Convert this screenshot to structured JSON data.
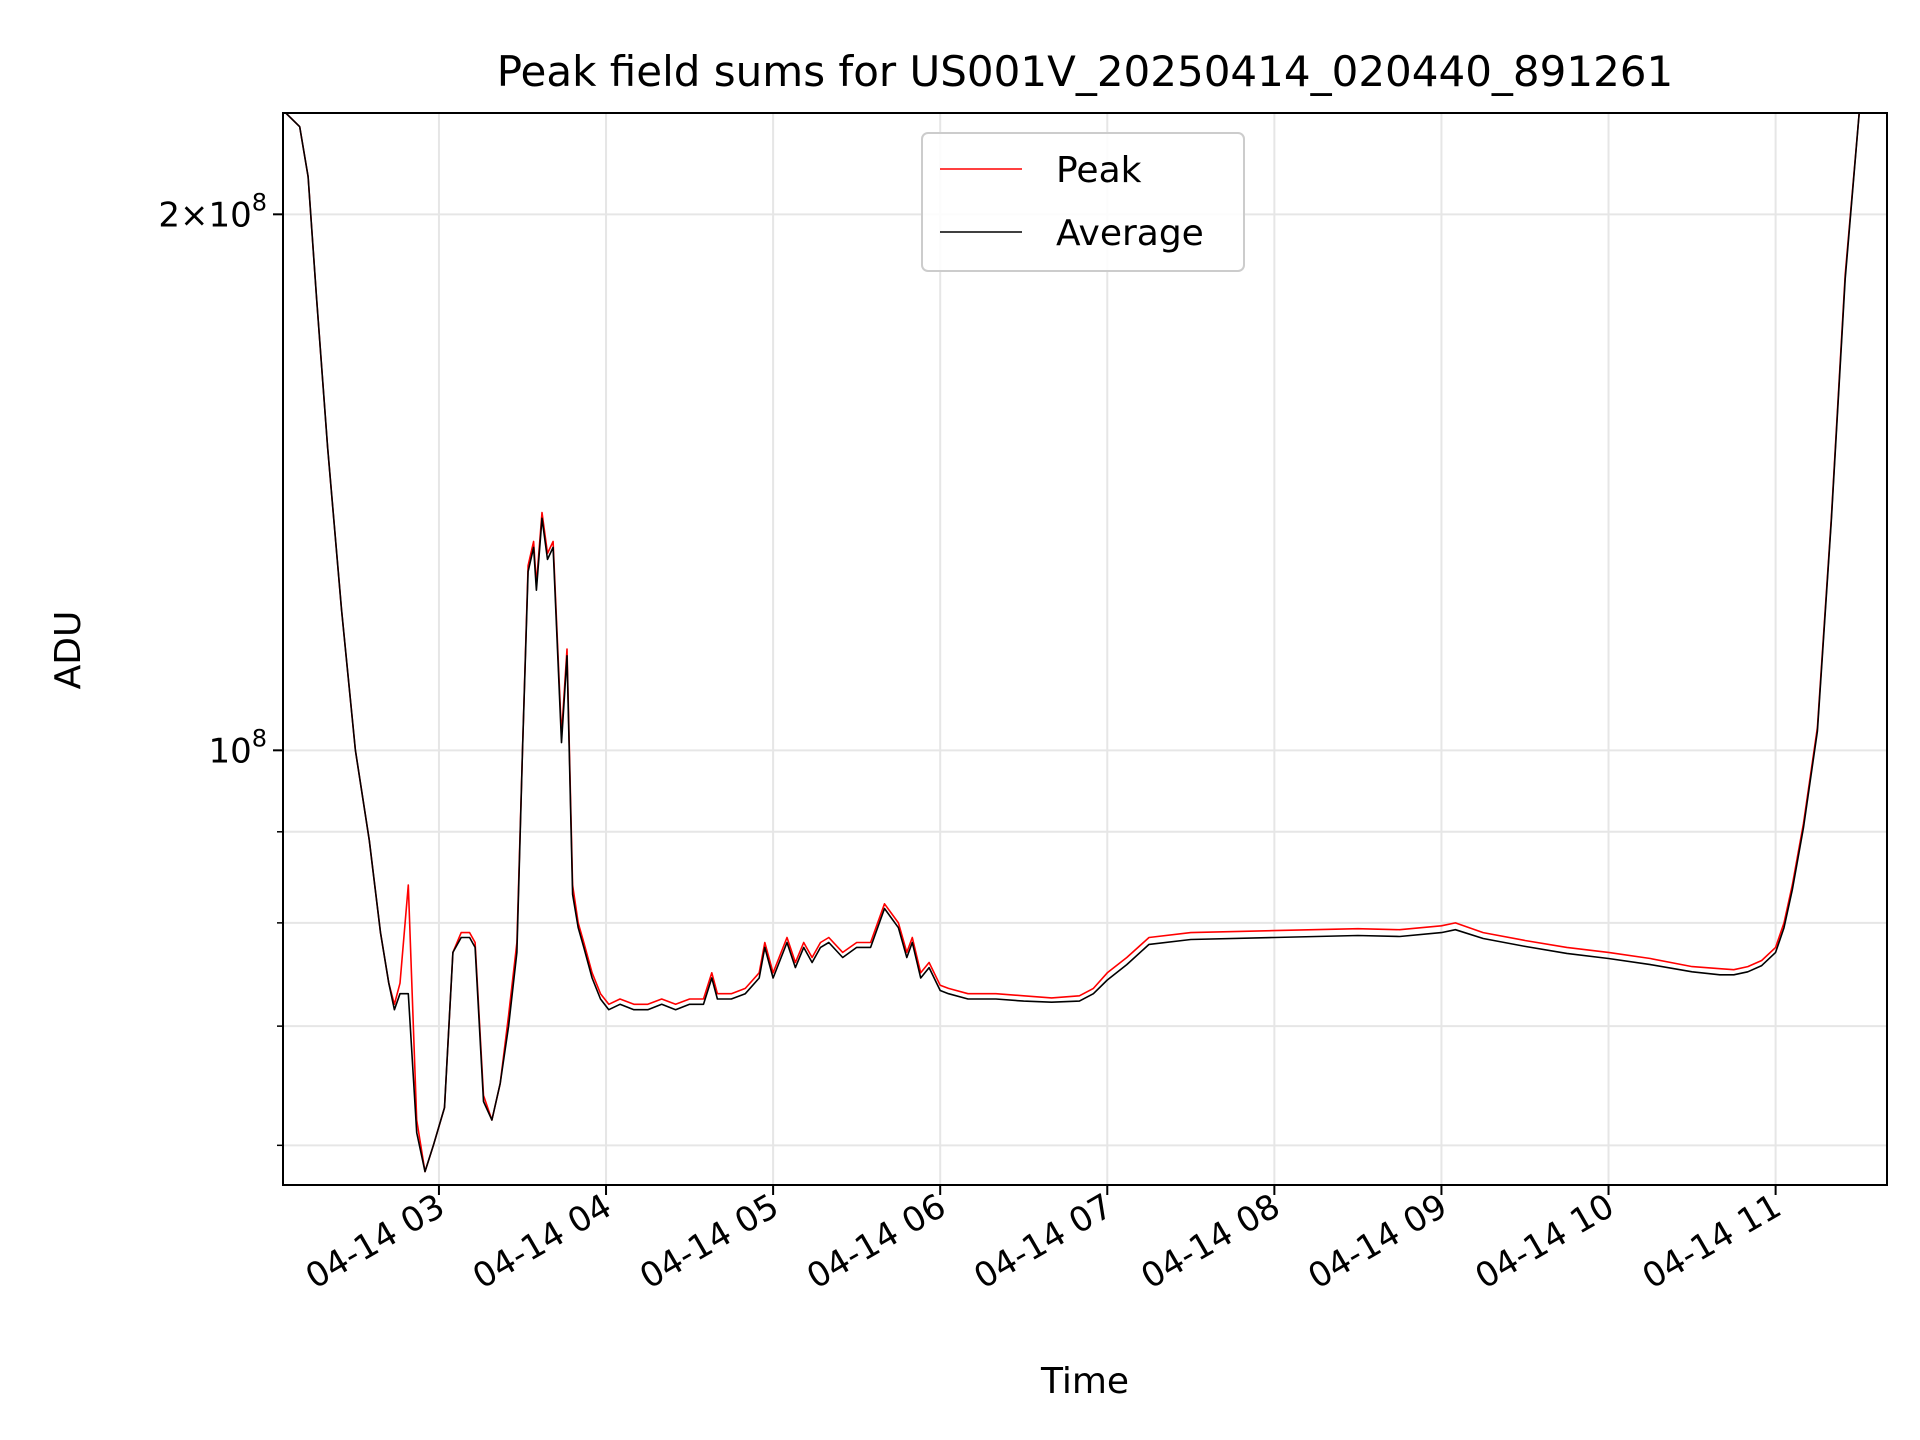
{
  "chart_data": {
    "type": "line",
    "title": "Peak field sums for US001V_20250414_020440_891261",
    "xlabel": "Time",
    "ylabel": "ADU",
    "x_ticks": [
      "04-14 03",
      "04-14 04",
      "04-14 05",
      "04-14 06",
      "04-14 07",
      "04-14 08",
      "04-14 09",
      "04-14 10",
      "04-14 11"
    ],
    "y_scale": "log",
    "y_tick_major_labels": [
      {
        "value": 200000000,
        "mantissa": "2",
        "times": "×",
        "base": "10",
        "exp": "8"
      },
      {
        "value": 100000000,
        "mantissa": "",
        "times": "",
        "base": "10",
        "exp": "8"
      }
    ],
    "y_minor_ticks": [
      60000000,
      70000000,
      80000000,
      90000000
    ],
    "xlim": [
      "2025-04-14 02:04",
      "2025-04-14 11:40"
    ],
    "ylim": [
      57000000,
      228000000
    ],
    "grid": true,
    "legend_position": "top-center",
    "series": [
      {
        "name": "Peak",
        "color": "#ff0000",
        "x": [
          "2025-04-14 02:05",
          "2025-04-14 02:10",
          "2025-04-14 02:13",
          "2025-04-14 02:16",
          "2025-04-14 02:20",
          "2025-04-14 02:25",
          "2025-04-14 02:30",
          "2025-04-14 02:35",
          "2025-04-14 02:39",
          "2025-04-14 02:42",
          "2025-04-14 02:44",
          "2025-04-14 02:46",
          "2025-04-14 02:49",
          "2025-04-14 02:52",
          "2025-04-14 02:55",
          "2025-04-14 02:58",
          "2025-04-14 03:02",
          "2025-04-14 03:05",
          "2025-04-14 03:08",
          "2025-04-14 03:11",
          "2025-04-14 03:13",
          "2025-04-14 03:16",
          "2025-04-14 03:19",
          "2025-04-14 03:22",
          "2025-04-14 03:25",
          "2025-04-14 03:28",
          "2025-04-14 03:30",
          "2025-04-14 03:32",
          "2025-04-14 03:34",
          "2025-04-14 03:35",
          "2025-04-14 03:37",
          "2025-04-14 03:39",
          "2025-04-14 03:41",
          "2025-04-14 03:44",
          "2025-04-14 03:46",
          "2025-04-14 03:48",
          "2025-04-14 03:50",
          "2025-04-14 03:52",
          "2025-04-14 03:55",
          "2025-04-14 03:58",
          "2025-04-14 04:01",
          "2025-04-14 04:05",
          "2025-04-14 04:10",
          "2025-04-14 04:15",
          "2025-04-14 04:20",
          "2025-04-14 04:25",
          "2025-04-14 04:30",
          "2025-04-14 04:35",
          "2025-04-14 04:38",
          "2025-04-14 04:40",
          "2025-04-14 04:45",
          "2025-04-14 04:50",
          "2025-04-14 04:55",
          "2025-04-14 04:57",
          "2025-04-14 05:00",
          "2025-04-14 05:05",
          "2025-04-14 05:08",
          "2025-04-14 05:11",
          "2025-04-14 05:14",
          "2025-04-14 05:17",
          "2025-04-14 05:20",
          "2025-04-14 05:25",
          "2025-04-14 05:30",
          "2025-04-14 05:35",
          "2025-04-14 05:40",
          "2025-04-14 05:45",
          "2025-04-14 05:48",
          "2025-04-14 05:50",
          "2025-04-14 05:53",
          "2025-04-14 05:56",
          "2025-04-14 06:00",
          "2025-04-14 06:03",
          "2025-04-14 06:10",
          "2025-04-14 06:20",
          "2025-04-14 06:30",
          "2025-04-14 06:40",
          "2025-04-14 06:50",
          "2025-04-14 06:55",
          "2025-04-14 07:00",
          "2025-04-14 07:07",
          "2025-04-14 07:15",
          "2025-04-14 07:30",
          "2025-04-14 08:00",
          "2025-04-14 08:30",
          "2025-04-14 08:45",
          "2025-04-14 09:00",
          "2025-04-14 09:05",
          "2025-04-14 09:15",
          "2025-04-14 09:30",
          "2025-04-14 09:45",
          "2025-04-14 10:00",
          "2025-04-14 10:15",
          "2025-04-14 10:30",
          "2025-04-14 10:40",
          "2025-04-14 10:45",
          "2025-04-14 10:50",
          "2025-04-14 10:55",
          "2025-04-14 11:00",
          "2025-04-14 11:03",
          "2025-04-14 11:06",
          "2025-04-14 11:10",
          "2025-04-14 11:15",
          "2025-04-14 11:20",
          "2025-04-14 11:25",
          "2025-04-14 11:30",
          "2025-04-14 11:33",
          "2025-04-14 11:40"
        ],
        "values": [
          228000000,
          224000000,
          210000000,
          180000000,
          148000000,
          120000000,
          100000000,
          89000000,
          79000000,
          74000000,
          72000000,
          74000000,
          84000000,
          62000000,
          58000000,
          60000000,
          63000000,
          77000000,
          79000000,
          79000000,
          78000000,
          64000000,
          62000000,
          65000000,
          71000000,
          78000000,
          100000000,
          127000000,
          131000000,
          124000000,
          136000000,
          129000000,
          131000000,
          102000000,
          114000000,
          84000000,
          80000000,
          78000000,
          75000000,
          73000000,
          72000000,
          72500000,
          72000000,
          72000000,
          72500000,
          72000000,
          72500000,
          72500000,
          75000000,
          73000000,
          73000000,
          73500000,
          75000000,
          78000000,
          75000000,
          78500000,
          76000000,
          78000000,
          76500000,
          78000000,
          78500000,
          77000000,
          78000000,
          78000000,
          82000000,
          80000000,
          77000000,
          78500000,
          75000000,
          76000000,
          73800000,
          73500000,
          73000000,
          73000000,
          72800000,
          72600000,
          72800000,
          73500000,
          75000000,
          76500000,
          78500000,
          79000000,
          79200000,
          79400000,
          79300000,
          79700000,
          80000000,
          79000000,
          78200000,
          77500000,
          77000000,
          76400000,
          75600000,
          75400000,
          75300000,
          75600000,
          76200000,
          77500000,
          80000000,
          84000000,
          91000000,
          103000000,
          135000000,
          185000000,
          228000000,
          228000000,
          228000000
        ]
      },
      {
        "name": "Average",
        "color": "#000000",
        "x": [
          "2025-04-14 02:05",
          "2025-04-14 02:10",
          "2025-04-14 02:13",
          "2025-04-14 02:16",
          "2025-04-14 02:20",
          "2025-04-14 02:25",
          "2025-04-14 02:30",
          "2025-04-14 02:35",
          "2025-04-14 02:39",
          "2025-04-14 02:42",
          "2025-04-14 02:44",
          "2025-04-14 02:46",
          "2025-04-14 02:49",
          "2025-04-14 02:52",
          "2025-04-14 02:55",
          "2025-04-14 02:58",
          "2025-04-14 03:02",
          "2025-04-14 03:05",
          "2025-04-14 03:08",
          "2025-04-14 03:11",
          "2025-04-14 03:13",
          "2025-04-14 03:16",
          "2025-04-14 03:19",
          "2025-04-14 03:22",
          "2025-04-14 03:25",
          "2025-04-14 03:28",
          "2025-04-14 03:30",
          "2025-04-14 03:32",
          "2025-04-14 03:34",
          "2025-04-14 03:35",
          "2025-04-14 03:37",
          "2025-04-14 03:39",
          "2025-04-14 03:41",
          "2025-04-14 03:44",
          "2025-04-14 03:46",
          "2025-04-14 03:48",
          "2025-04-14 03:50",
          "2025-04-14 03:52",
          "2025-04-14 03:55",
          "2025-04-14 03:58",
          "2025-04-14 04:01",
          "2025-04-14 04:05",
          "2025-04-14 04:10",
          "2025-04-14 04:15",
          "2025-04-14 04:20",
          "2025-04-14 04:25",
          "2025-04-14 04:30",
          "2025-04-14 04:35",
          "2025-04-14 04:38",
          "2025-04-14 04:40",
          "2025-04-14 04:45",
          "2025-04-14 04:50",
          "2025-04-14 04:55",
          "2025-04-14 04:57",
          "2025-04-14 05:00",
          "2025-04-14 05:05",
          "2025-04-14 05:08",
          "2025-04-14 05:11",
          "2025-04-14 05:14",
          "2025-04-14 05:17",
          "2025-04-14 05:20",
          "2025-04-14 05:25",
          "2025-04-14 05:30",
          "2025-04-14 05:35",
          "2025-04-14 05:40",
          "2025-04-14 05:45",
          "2025-04-14 05:48",
          "2025-04-14 05:50",
          "2025-04-14 05:53",
          "2025-04-14 05:56",
          "2025-04-14 06:00",
          "2025-04-14 06:03",
          "2025-04-14 06:10",
          "2025-04-14 06:20",
          "2025-04-14 06:30",
          "2025-04-14 06:40",
          "2025-04-14 06:50",
          "2025-04-14 06:55",
          "2025-04-14 07:00",
          "2025-04-14 07:07",
          "2025-04-14 07:15",
          "2025-04-14 07:30",
          "2025-04-14 08:00",
          "2025-04-14 08:30",
          "2025-04-14 08:45",
          "2025-04-14 09:00",
          "2025-04-14 09:05",
          "2025-04-14 09:15",
          "2025-04-14 09:30",
          "2025-04-14 09:45",
          "2025-04-14 10:00",
          "2025-04-14 10:15",
          "2025-04-14 10:30",
          "2025-04-14 10:40",
          "2025-04-14 10:45",
          "2025-04-14 10:50",
          "2025-04-14 10:55",
          "2025-04-14 11:00",
          "2025-04-14 11:03",
          "2025-04-14 11:06",
          "2025-04-14 11:10",
          "2025-04-14 11:15",
          "2025-04-14 11:20",
          "2025-04-14 11:25",
          "2025-04-14 11:30",
          "2025-04-14 11:33",
          "2025-04-14 11:40"
        ],
        "values": [
          228000000,
          224000000,
          210000000,
          180000000,
          148000000,
          120000000,
          100000000,
          89000000,
          79000000,
          74000000,
          71500000,
          73000000,
          73000000,
          61000000,
          58000000,
          60000000,
          63000000,
          77000000,
          78500000,
          78500000,
          77500000,
          63500000,
          62000000,
          65000000,
          70000000,
          77000000,
          100000000,
          126000000,
          130000000,
          123000000,
          135000000,
          128000000,
          130000000,
          101000000,
          113000000,
          83000000,
          79500000,
          77500000,
          74500000,
          72500000,
          71500000,
          72000000,
          71500000,
          71500000,
          72000000,
          71500000,
          72000000,
          72000000,
          74500000,
          72500000,
          72500000,
          73000000,
          74500000,
          77500000,
          74500000,
          78000000,
          75500000,
          77500000,
          76000000,
          77500000,
          78000000,
          76500000,
          77500000,
          77500000,
          81500000,
          79500000,
          76500000,
          78000000,
          74500000,
          75500000,
          73300000,
          73000000,
          72500000,
          72500000,
          72300000,
          72200000,
          72300000,
          73000000,
          74300000,
          75800000,
          77800000,
          78300000,
          78500000,
          78700000,
          78600000,
          79000000,
          79300000,
          78400000,
          77600000,
          76900000,
          76400000,
          75800000,
          75100000,
          74800000,
          74800000,
          75100000,
          75700000,
          77000000,
          79500000,
          83500000,
          90500000,
          102500000,
          134500000,
          184000000,
          228000000,
          228000000,
          228000000
        ]
      }
    ]
  }
}
